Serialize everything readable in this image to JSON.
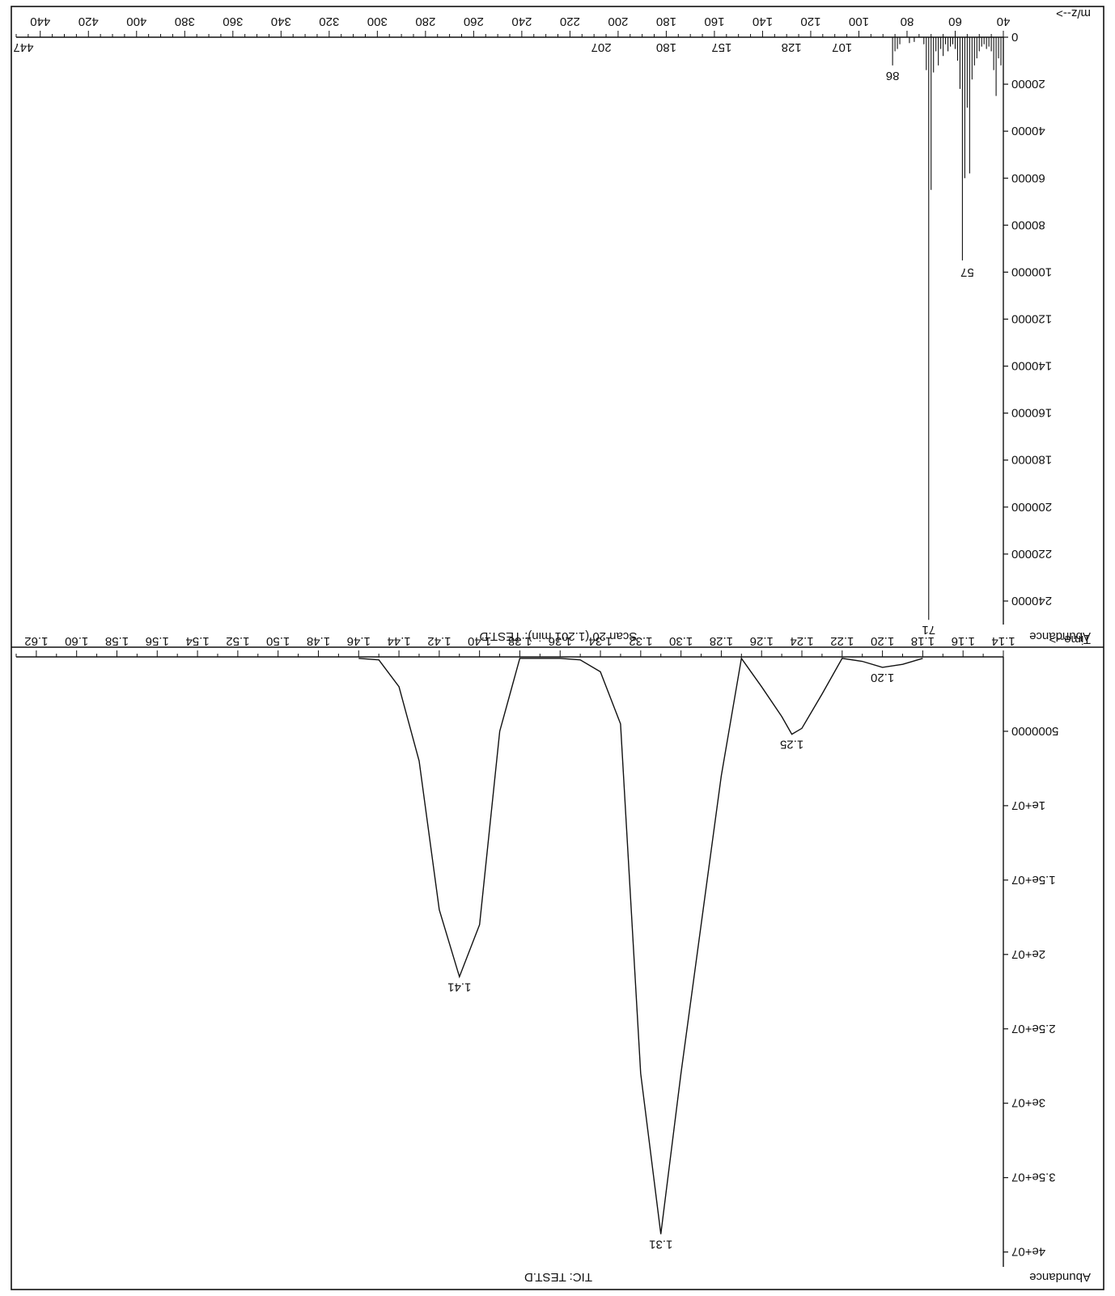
{
  "orientation": "rotated-180",
  "colors": {
    "ink": "#111111",
    "background": "#ffffff"
  },
  "chart_data": [
    {
      "type": "bar",
      "subtype": "mass-spectrum",
      "title": "Scan 20 (1.201 min): TEST.D",
      "xlabel": "m/z-->",
      "ylabel": "Abundance",
      "xlim": [
        40,
        450
      ],
      "ylim": [
        0,
        250000
      ],
      "x_ticks": [
        "40",
        "60",
        "80",
        "100",
        "120",
        "140",
        "160",
        "180",
        "200",
        "220",
        "240",
        "260",
        "280",
        "300",
        "320",
        "340",
        "360",
        "380",
        "400",
        "420",
        "440"
      ],
      "y_ticks": [
        "0",
        "20000",
        "40000",
        "60000",
        "80000",
        "100000",
        "120000",
        "140000",
        "160000",
        "180000",
        "200000",
        "220000",
        "240000"
      ],
      "x_tick_values": [
        40,
        60,
        80,
        100,
        120,
        140,
        160,
        180,
        200,
        220,
        240,
        260,
        280,
        300,
        320,
        340,
        360,
        380,
        400,
        420,
        440
      ],
      "y_tick_values": [
        0,
        20000,
        40000,
        60000,
        80000,
        100000,
        120000,
        140000,
        160000,
        180000,
        200000,
        220000,
        240000
      ],
      "grid": false,
      "peaks": [
        {
          "mz": 41,
          "abundance": 12000
        },
        {
          "mz": 42,
          "abundance": 9000
        },
        {
          "mz": 43,
          "abundance": 25000
        },
        {
          "mz": 44,
          "abundance": 14000
        },
        {
          "mz": 45,
          "abundance": 6000
        },
        {
          "mz": 46,
          "abundance": 4000
        },
        {
          "mz": 47,
          "abundance": 5000
        },
        {
          "mz": 48,
          "abundance": 3000
        },
        {
          "mz": 49,
          "abundance": 4000
        },
        {
          "mz": 50,
          "abundance": 6000
        },
        {
          "mz": 51,
          "abundance": 9000
        },
        {
          "mz": 52,
          "abundance": 12000
        },
        {
          "mz": 53,
          "abundance": 18000
        },
        {
          "mz": 54,
          "abundance": 58000
        },
        {
          "mz": 55,
          "abundance": 30000
        },
        {
          "mz": 56,
          "abundance": 60000
        },
        {
          "mz": 57,
          "abundance": 95000
        },
        {
          "mz": 58,
          "abundance": 22000
        },
        {
          "mz": 59,
          "abundance": 10000
        },
        {
          "mz": 60,
          "abundance": 5000
        },
        {
          "mz": 61,
          "abundance": 3000
        },
        {
          "mz": 62,
          "abundance": 4000
        },
        {
          "mz": 63,
          "abundance": 6000
        },
        {
          "mz": 64,
          "abundance": 3000
        },
        {
          "mz": 65,
          "abundance": 8000
        },
        {
          "mz": 66,
          "abundance": 5000
        },
        {
          "mz": 67,
          "abundance": 12000
        },
        {
          "mz": 68,
          "abundance": 6000
        },
        {
          "mz": 69,
          "abundance": 15000
        },
        {
          "mz": 70,
          "abundance": 65000
        },
        {
          "mz": 71,
          "abundance": 248000
        },
        {
          "mz": 72,
          "abundance": 14000
        },
        {
          "mz": 73,
          "abundance": 3000
        },
        {
          "mz": 77,
          "abundance": 2000
        },
        {
          "mz": 79,
          "abundance": 2500
        },
        {
          "mz": 83,
          "abundance": 3000
        },
        {
          "mz": 84,
          "abundance": 5000
        },
        {
          "mz": 85,
          "abundance": 6000
        },
        {
          "mz": 86,
          "abundance": 12000
        }
      ],
      "peak_labels": [
        {
          "mz": 71,
          "label": "71",
          "abundance": 248000
        },
        {
          "mz": 57,
          "label": "57",
          "abundance": 95000
        },
        {
          "mz": 86,
          "label": "86",
          "abundance": 12000
        },
        {
          "mz": 107,
          "label": "107",
          "abundance": 0
        },
        {
          "mz": 128,
          "label": "128",
          "abundance": 0
        },
        {
          "mz": 157,
          "label": "157",
          "abundance": 0
        },
        {
          "mz": 180,
          "label": "180",
          "abundance": 0
        },
        {
          "mz": 207,
          "label": "207",
          "abundance": 0
        },
        {
          "mz": 447,
          "label": "447",
          "abundance": 0
        }
      ]
    },
    {
      "type": "line",
      "subtype": "total-ion-chromatogram",
      "title": "TIC: TEST.D",
      "xlabel": "Time-->",
      "ylabel": "Abundance",
      "xlim": [
        1.14,
        1.63
      ],
      "ylim": [
        0,
        41000000
      ],
      "x_ticks": [
        "1.14",
        "1.16",
        "1.18",
        "1.20",
        "1.22",
        "1.24",
        "1.26",
        "1.28",
        "1.30",
        "1.32",
        "1.34",
        "1.36",
        "1.38",
        "1.40",
        "1.42",
        "1.44",
        "1.46",
        "1.48",
        "1.50",
        "1.52",
        "1.54",
        "1.56",
        "1.58",
        "1.60",
        "1.62"
      ],
      "y_ticks": [
        "5000000",
        "1e+07",
        "1.5e+07",
        "2e+07",
        "2.5e+07",
        "3e+07",
        "3.5e+07",
        "4e+07"
      ],
      "x_tick_values": [
        1.14,
        1.16,
        1.18,
        1.2,
        1.22,
        1.24,
        1.26,
        1.28,
        1.3,
        1.32,
        1.34,
        1.36,
        1.38,
        1.4,
        1.42,
        1.44,
        1.46,
        1.48,
        1.5,
        1.52,
        1.54,
        1.56,
        1.58,
        1.6,
        1.62
      ],
      "y_tick_values": [
        5000000,
        10000000,
        15000000,
        20000000,
        25000000,
        30000000,
        35000000,
        40000000
      ],
      "grid": false,
      "x": [
        1.18,
        1.19,
        1.2,
        1.21,
        1.22,
        1.23,
        1.24,
        1.245,
        1.25,
        1.26,
        1.27,
        1.28,
        1.29,
        1.3,
        1.31,
        1.32,
        1.33,
        1.34,
        1.35,
        1.36,
        1.37,
        1.38,
        1.39,
        1.4,
        1.41,
        1.42,
        1.43,
        1.44,
        1.45,
        1.46
      ],
      "y": [
        100000,
        500000,
        700000,
        300000,
        100000,
        2500000,
        4800000,
        5200000,
        4000000,
        2000000,
        100000,
        8000000,
        18000000,
        28000000,
        38800000,
        28000000,
        4500000,
        1000000,
        200000,
        100000,
        100000,
        100000,
        5000000,
        18000000,
        21500000,
        17000000,
        7000000,
        2000000,
        200000,
        100000
      ],
      "peak_labels": [
        {
          "x": 1.2,
          "y": 700000,
          "label": "1.20"
        },
        {
          "x": 1.245,
          "y": 5200000,
          "label": "1.25"
        },
        {
          "x": 1.31,
          "y": 38800000,
          "label": "1.31"
        },
        {
          "x": 1.41,
          "y": 21500000,
          "label": "1.41"
        }
      ]
    }
  ]
}
